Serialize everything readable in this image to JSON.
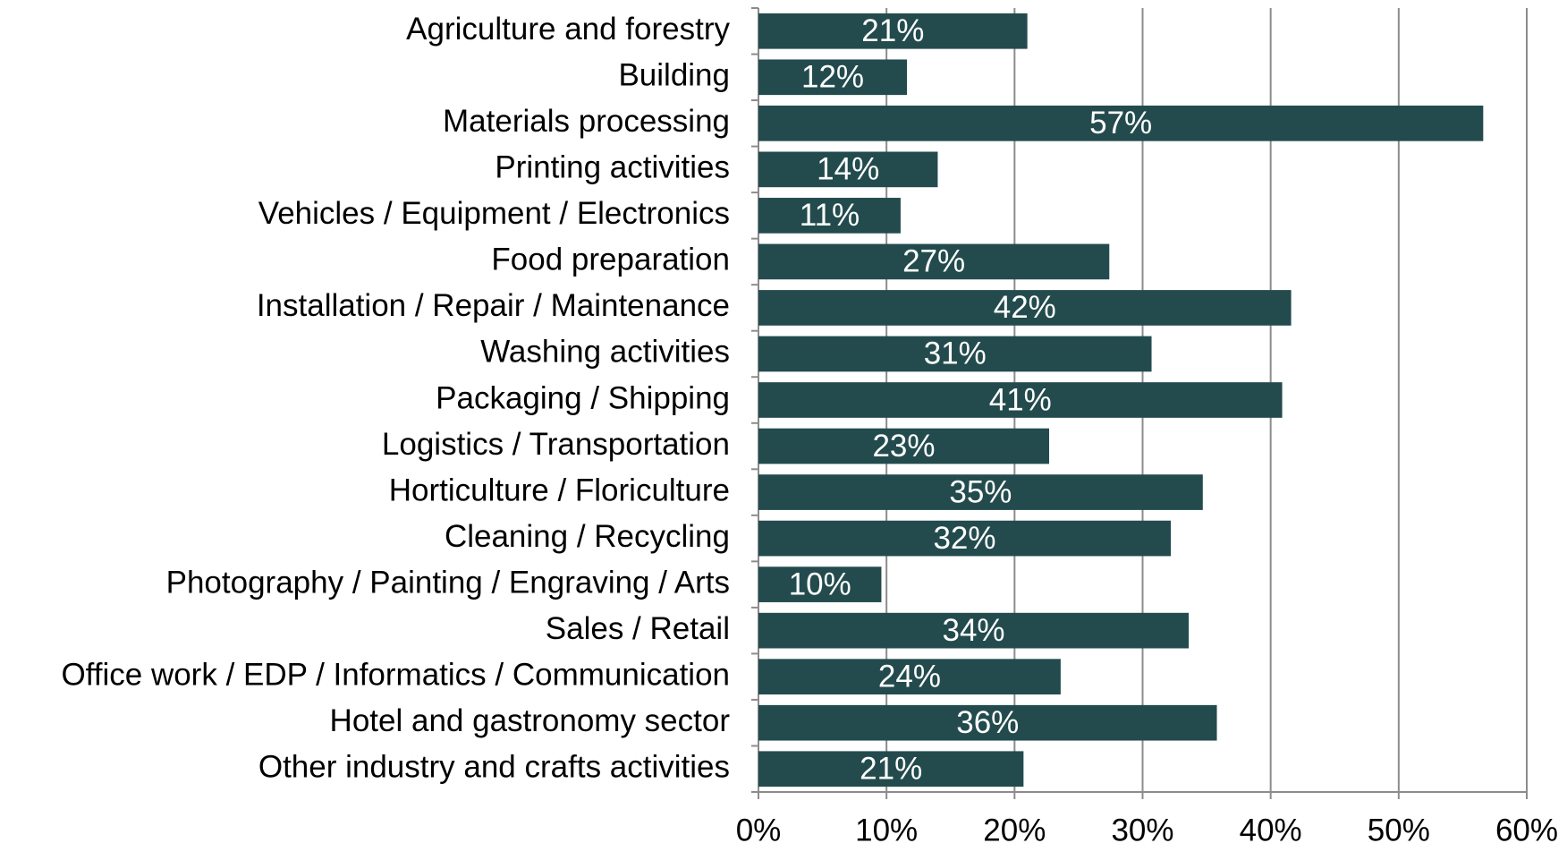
{
  "chart_data": {
    "type": "bar",
    "orientation": "horizontal",
    "categories": [
      "Agriculture and forestry",
      "Building",
      "Materials processing",
      "Printing activities",
      "Vehicles / Equipment / Electronics",
      "Food preparation",
      "Installation / Repair / Maintenance",
      "Washing activities",
      "Packaging / Shipping",
      "Logistics / Transportation",
      "Horticulture / Floriculture",
      "Cleaning / Recycling",
      "Photography / Painting / Engraving / Arts",
      "Sales / Retail",
      "Office work / EDP / Informatics / Communication",
      "Hotel and gastronomy sector",
      "Other industry and crafts activities"
    ],
    "values": [
      21.0,
      11.6,
      56.6,
      14.0,
      11.1,
      27.4,
      41.6,
      30.7,
      40.9,
      22.7,
      34.7,
      32.2,
      9.6,
      33.6,
      23.6,
      35.8,
      20.7
    ],
    "value_labels": [
      "21%",
      "12%",
      "57%",
      "14%",
      "11%",
      "27%",
      "42%",
      "31%",
      "41%",
      "23%",
      "35%",
      "32%",
      "10%",
      "34%",
      "24%",
      "36%",
      "21%"
    ],
    "color": "#234b4d",
    "xlim": [
      0,
      60
    ],
    "xticks": [
      {
        "value": 0,
        "label": "0%"
      },
      {
        "value": 10,
        "label": "10%"
      },
      {
        "value": 20,
        "label": "20%"
      },
      {
        "value": 30,
        "label": "30%"
      },
      {
        "value": 40,
        "label": "40%"
      },
      {
        "value": 50,
        "label": "50%"
      },
      {
        "value": 60,
        "label": "60%"
      }
    ],
    "grid": true
  }
}
